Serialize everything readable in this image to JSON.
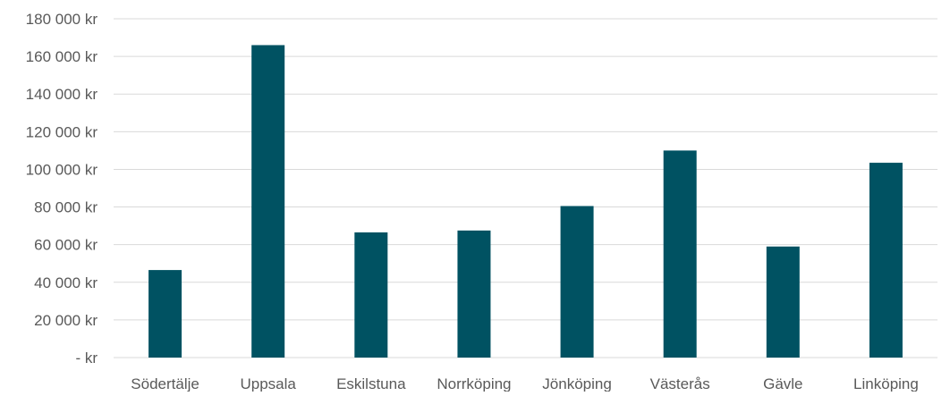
{
  "chart_data": {
    "type": "bar",
    "categories": [
      "Södertälje",
      "Uppsala",
      "Eskilstuna",
      "Norrköping",
      "Jönköping",
      "Västerås",
      "Gävle",
      "Linköping"
    ],
    "values": [
      46500,
      166000,
      66500,
      67500,
      80500,
      110000,
      59000,
      103500
    ],
    "y_ticks": [
      {
        "value": 0,
        "label": "- kr"
      },
      {
        "value": 20000,
        "label": "20 000 kr"
      },
      {
        "value": 40000,
        "label": "40 000 kr"
      },
      {
        "value": 60000,
        "label": "60 000 kr"
      },
      {
        "value": 80000,
        "label": "80 000 kr"
      },
      {
        "value": 100000,
        "label": "100 000 kr"
      },
      {
        "value": 120000,
        "label": "120 000 kr"
      },
      {
        "value": 140000,
        "label": "140 000 kr"
      },
      {
        "value": 160000,
        "label": "160 000 kr"
      },
      {
        "value": 180000,
        "label": "180 000 kr"
      }
    ],
    "ylim": [
      0,
      180000
    ],
    "grid": true,
    "legend": "none",
    "title": "",
    "xlabel": "",
    "ylabel": "",
    "colors": {
      "bar": "#005262",
      "grid": "#d9d9d9",
      "text": "#595959"
    }
  }
}
